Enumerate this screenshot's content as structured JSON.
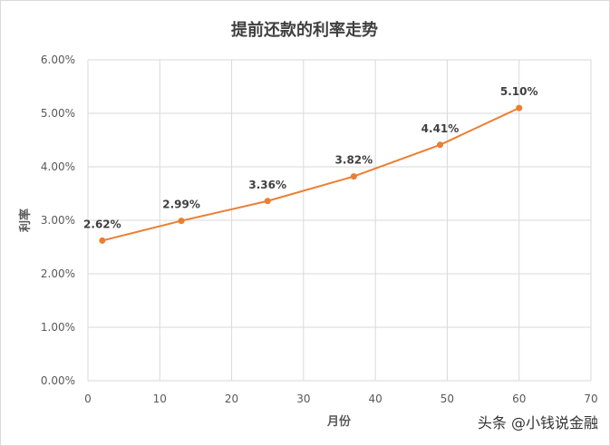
{
  "chart_data": {
    "type": "line",
    "title": "提前还款的利率走势",
    "xlabel": "月份",
    "ylabel": "利率",
    "xlim": [
      0,
      70
    ],
    "xticks": [
      0,
      10,
      20,
      30,
      40,
      50,
      60,
      70
    ],
    "ylim": [
      0,
      0.06
    ],
    "yticks": [
      "0.00%",
      "1.00%",
      "2.00%",
      "3.00%",
      "4.00%",
      "5.00%",
      "6.00%"
    ],
    "grid": true,
    "series": [
      {
        "x": [
          2,
          13,
          25,
          37,
          49,
          60
        ],
        "y": [
          0.0262,
          0.0299,
          0.0336,
          0.0382,
          0.0441,
          0.051
        ],
        "labels": [
          "2.62%",
          "2.99%",
          "3.36%",
          "3.82%",
          "4.41%",
          "5.10%"
        ],
        "color": "#ed7d31"
      }
    ]
  },
  "watermark": "头条 @小钱说金融",
  "colors": {
    "line": "#ed7d31",
    "grid": "#d9d9d9",
    "text": "#595959",
    "title": "#404040",
    "label": "#404040"
  }
}
